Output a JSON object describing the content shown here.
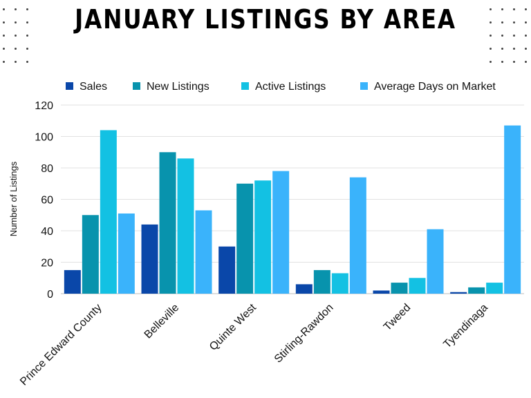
{
  "chart_data": {
    "type": "bar",
    "title": "JANUARY LISTINGS BY AREA",
    "xlabel": "",
    "ylabel": "Number of Listings",
    "ylim": [
      0,
      120
    ],
    "yticks": [
      0,
      20,
      40,
      60,
      80,
      100,
      120
    ],
    "grid": true,
    "legend_position": "top",
    "categories": [
      "Prince Edward County",
      "Belleville",
      "Quinte West",
      "Stirling-Rawdon",
      "Tweed",
      "Tyendinaga"
    ],
    "series": [
      {
        "name": "Sales",
        "color": "#0a47a9",
        "values": [
          15,
          44,
          30,
          6,
          2,
          1
        ]
      },
      {
        "name": "New Listings",
        "color": "#0893ad",
        "values": [
          50,
          90,
          70,
          15,
          7,
          4
        ]
      },
      {
        "name": "Active Listings",
        "color": "#13c1e3",
        "values": [
          104,
          86,
          72,
          13,
          10,
          7
        ]
      },
      {
        "name": "Average Days on Market",
        "color": "#3ab3fb",
        "values": [
          51,
          53,
          78,
          74,
          41,
          107
        ]
      }
    ]
  },
  "decor": {
    "dot_color": "#444444"
  }
}
